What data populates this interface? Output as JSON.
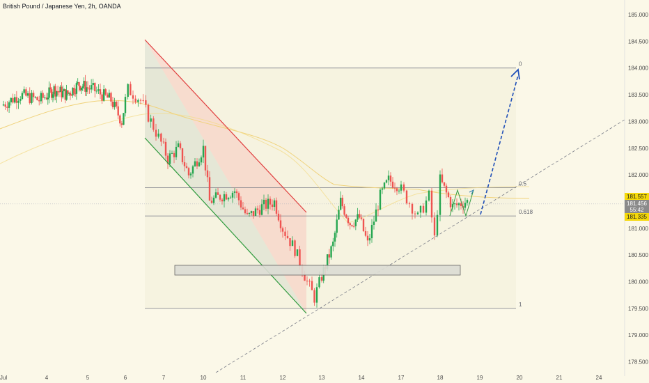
{
  "header": {
    "title": "British Pound / Japanese Yen, 2h, OANDA"
  },
  "price_tags": {
    "upper": "181.557",
    "current": "181.456",
    "countdown": "55:42",
    "lower": "181.335",
    "upper_color": "#f5d90a",
    "current_color": "#8a8a8a",
    "lower_color": "#f5d90a"
  },
  "chart_data": {
    "type": "candlestick",
    "y_ticks": [
      "178.500",
      "179.000",
      "179.500",
      "180.000",
      "180.500",
      "181.000",
      "181.500",
      "182.000",
      "182.500",
      "183.000",
      "183.500",
      "184.000",
      "184.500",
      "185.000"
    ],
    "x_ticks": [
      "Jul",
      "4",
      "5",
      "6",
      "7",
      "10",
      "11",
      "12",
      "13",
      "14",
      "17",
      "18",
      "19",
      "20",
      "21",
      "24"
    ],
    "ylim": [
      178.3,
      185.2
    ],
    "fib_levels": [
      {
        "label": "0",
        "price": 184.0
      },
      {
        "label": "0.5",
        "price": 181.76
      },
      {
        "label": "0.618",
        "price": 181.23
      },
      {
        "label": "1",
        "price": 179.5
      }
    ],
    "grid": false,
    "up_color": "#26a650",
    "down_color": "#ef5350"
  }
}
